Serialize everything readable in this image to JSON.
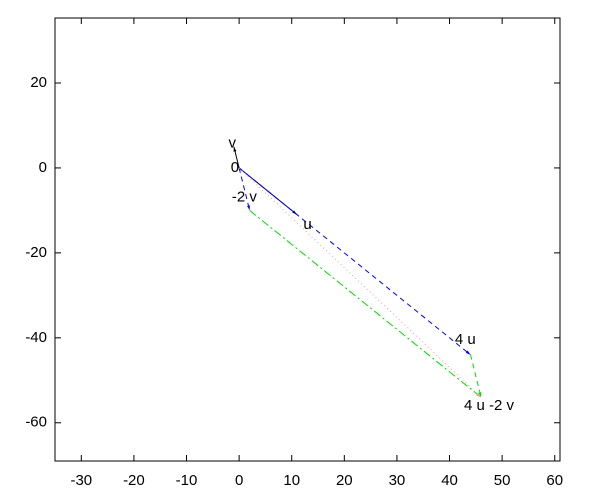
{
  "chart_data": {
    "type": "vector",
    "xlim": [
      -35,
      61
    ],
    "ylim": [
      -69,
      35.3
    ],
    "xticks": [
      -30,
      -20,
      -10,
      0,
      10,
      20,
      30,
      40,
      50,
      60
    ],
    "yticks": [
      -60,
      -40,
      -20,
      0,
      20
    ],
    "grid": false,
    "vectors": [
      {
        "x": [
          0,
          -1
        ],
        "y": [
          0,
          5
        ],
        "color": "#000000",
        "style": "solid"
      },
      {
        "x": [
          0,
          11
        ],
        "y": [
          0,
          -11
        ],
        "color": "#000080",
        "style": "solid"
      },
      {
        "x": [
          0,
          2
        ],
        "y": [
          0,
          -10
        ],
        "color": "#0000ff",
        "style": "dashed"
      },
      {
        "x": [
          0,
          44
        ],
        "y": [
          0,
          -44
        ],
        "color": "#0000ff",
        "style": "dashed"
      },
      {
        "x": [
          44,
          46
        ],
        "y": [
          -44,
          -54
        ],
        "color": "#00dd00",
        "style": "dashed"
      },
      {
        "x": [
          2,
          46
        ],
        "y": [
          -10,
          -54
        ],
        "color": "#00dd00",
        "style": "dashdot"
      },
      {
        "x": [
          0,
          46
        ],
        "y": [
          0,
          -54
        ],
        "color": "#ff9999",
        "style": "dotted"
      }
    ],
    "labels": [
      {
        "text": "v",
        "x": -1.3,
        "y": 5.7
      },
      {
        "text": "0",
        "x": -0.8,
        "y": 0
      },
      {
        "text": "-2 v",
        "x": 1,
        "y": -7
      },
      {
        "text": "u",
        "x": 13,
        "y": -13.5
      },
      {
        "text": "4 u",
        "x": 43,
        "y": -40.5
      },
      {
        "text": "4 u -2 v",
        "x": 47.5,
        "y": -56
      }
    ]
  }
}
